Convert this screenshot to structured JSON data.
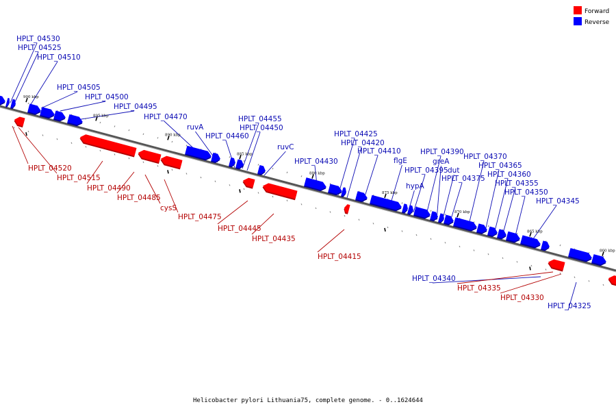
{
  "legend": {
    "forward": {
      "label": "Forward",
      "color": "#ff0000"
    },
    "reverse": {
      "label": "Reverse",
      "color": "#0000ff"
    }
  },
  "caption": "Helicobacter pylori Lithuania75, complete genome. - 0..1624644",
  "colors": {
    "forward_fill": "#ff0000",
    "forward_dark": "#b30000",
    "reverse_fill": "#0000ff",
    "reverse_dark": "#00009a",
    "forward_text": "#b30000",
    "reverse_text": "#0a0ab4",
    "backbone": "#555555"
  },
  "scale_labels": [
    "900 kbp",
    "895 kbp",
    "890 kbp",
    "885 kbp",
    "880 kbp",
    "875 kbp",
    "870 kbp",
    "865 kbp",
    "860 kbp"
  ],
  "genes_forward": [
    "HPLT_04520",
    "HPLT_04515",
    "HPLT_04490",
    "HPLT_04485",
    "cysS",
    "HPLT_04475",
    "HPLT_04445",
    "HPLT_04435",
    "HPLT_04415",
    "HPLT_04335",
    "HPLT_04330"
  ],
  "genes_reverse": [
    "HPLT_04530",
    "HPLT_04525",
    "HPLT_04510",
    "HPLT_04505",
    "HPLT_04500",
    "HPLT_04495",
    "HPLT_04470",
    "ruvA",
    "HPLT_04460",
    "HPLT_04455",
    "HPLT_04450",
    "ruvC",
    "HPLT_04430",
    "HPLT_04425",
    "HPLT_04420",
    "HPLT_04410",
    "flgE",
    "HPLT_04395",
    "hypA",
    "HPLT_04390",
    "greA",
    "dut",
    "HPLT_04375",
    "HPLT_04370",
    "HPLT_04365",
    "HPLT_04360",
    "HPLT_04355",
    "HPLT_04350",
    "HPLT_04345",
    "HPLT_04340",
    "HPLT_04325"
  ]
}
